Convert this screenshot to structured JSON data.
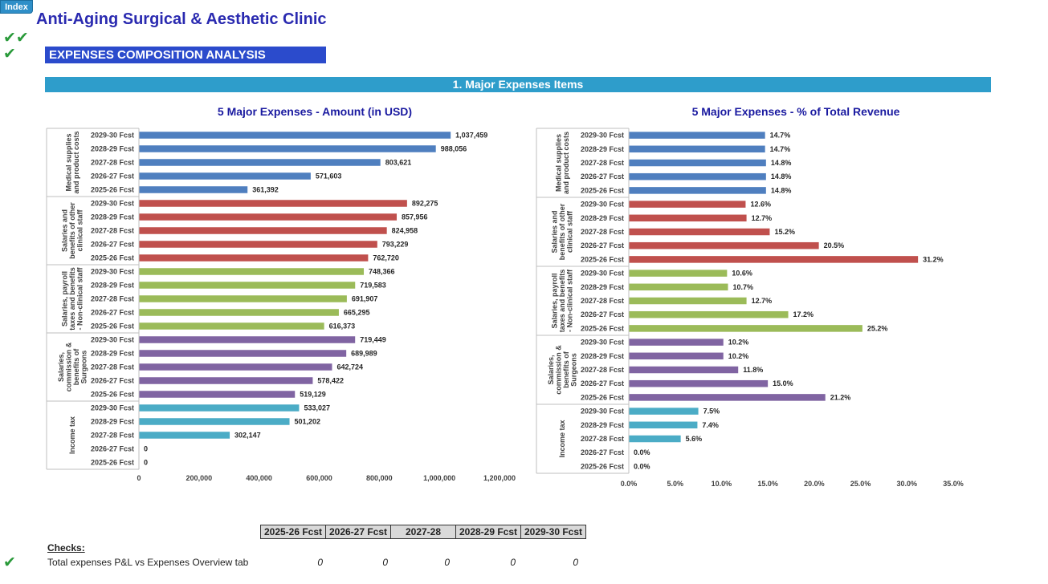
{
  "index_button": "Index",
  "title": "Anti-Aging Surgical & Aesthetic Clinic",
  "check_marks": {
    "top1": "✔✔",
    "top2": "✔",
    "row": "✔"
  },
  "section_title": "EXPENSES COMPOSITION ANALYSIS",
  "subsection_title": "1. Major Expenses Items",
  "chart_data": [
    {
      "type": "bar",
      "orientation": "horizontal",
      "title": "5 Major Expenses - Amount (in USD)",
      "xlim": [
        0,
        1200000
      ],
      "xticks": [
        "0",
        "200,000",
        "400,000",
        "600,000",
        "800,000",
        "1,000,000",
        "1,200,000"
      ],
      "groups": [
        {
          "name": "Medical supplies and product costs",
          "label_lines": [
            "Medical supplies",
            "and product costs"
          ],
          "color": "#4f7fbf",
          "categories": [
            "2029-30 Fcst",
            "2028-29 Fcst",
            "2027-28 Fcst",
            "2026-27 Fcst",
            "2025-26 Fcst"
          ],
          "values": [
            1037459,
            988056,
            803621,
            571603,
            361392
          ],
          "labels": [
            "1,037,459",
            "988,056",
            "803,621",
            "571,603",
            "361,392"
          ]
        },
        {
          "name": "Salaries and benefits of other clinical staff",
          "label_lines": [
            "Salaries and",
            "benefits of other",
            "clinical staff"
          ],
          "color": "#c0504d",
          "categories": [
            "2029-30 Fcst",
            "2028-29 Fcst",
            "2027-28 Fcst",
            "2026-27 Fcst",
            "2025-26 Fcst"
          ],
          "values": [
            892275,
            857956,
            824958,
            793229,
            762720
          ],
          "labels": [
            "892,275",
            "857,956",
            "824,958",
            "793,229",
            "762,720"
          ]
        },
        {
          "name": "Salaries, payroll taxes and benefits - Non-clinical staff",
          "label_lines": [
            "Salaries, payroll",
            "taxes and benefits",
            "- Non-clinical staff"
          ],
          "color": "#9bbb59",
          "categories": [
            "2029-30 Fcst",
            "2028-29 Fcst",
            "2027-28 Fcst",
            "2026-27 Fcst",
            "2025-26 Fcst"
          ],
          "values": [
            748366,
            719583,
            691907,
            665295,
            616373
          ],
          "labels": [
            "748,366",
            "719,583",
            "691,907",
            "665,295",
            "616,373"
          ]
        },
        {
          "name": "Salaries, commission & benefits of Surgeons",
          "label_lines": [
            "Salaries,",
            "commission &",
            "benefits of",
            "Surgeons"
          ],
          "color": "#8064a2",
          "categories": [
            "2029-30 Fcst",
            "2028-29 Fcst",
            "2027-28 Fcst",
            "2026-27 Fcst",
            "2025-26 Fcst"
          ],
          "values": [
            719449,
            689989,
            642724,
            578422,
            519129
          ],
          "labels": [
            "719,449",
            "689,989",
            "642,724",
            "578,422",
            "519,129"
          ]
        },
        {
          "name": "Income tax",
          "label_lines": [
            "Income tax"
          ],
          "color": "#4bacc6",
          "categories": [
            "2029-30 Fcst",
            "2028-29 Fcst",
            "2027-28 Fcst",
            "2026-27 Fcst",
            "2025-26 Fcst"
          ],
          "values": [
            533027,
            501202,
            302147,
            0,
            0
          ],
          "labels": [
            "533,027",
            "501,202",
            "302,147",
            "0",
            "0"
          ]
        }
      ]
    },
    {
      "type": "bar",
      "orientation": "horizontal",
      "title": "5 Major Expenses - % of Total Revenue",
      "xlim": [
        0,
        35
      ],
      "xticks": [
        "0.0%",
        "5.0%",
        "10.0%",
        "15.0%",
        "20.0%",
        "25.0%",
        "30.0%",
        "35.0%"
      ],
      "groups": [
        {
          "name": "Medical supplies and product costs",
          "label_lines": [
            "Medical supplies",
            "and product costs"
          ],
          "color": "#4f7fbf",
          "categories": [
            "2029-30 Fcst",
            "2028-29 Fcst",
            "2027-28 Fcst",
            "2026-27 Fcst",
            "2025-26 Fcst"
          ],
          "values": [
            14.7,
            14.7,
            14.8,
            14.8,
            14.8
          ],
          "labels": [
            "14.7%",
            "14.7%",
            "14.8%",
            "14.8%",
            "14.8%"
          ]
        },
        {
          "name": "Salaries and benefits of other clinical staff",
          "label_lines": [
            "Salaries and",
            "benefits of other",
            "clinical staff"
          ],
          "color": "#c0504d",
          "categories": [
            "2029-30 Fcst",
            "2028-29 Fcst",
            "2027-28 Fcst",
            "2026-27 Fcst",
            "2025-26 Fcst"
          ],
          "values": [
            12.6,
            12.7,
            15.2,
            20.5,
            31.2
          ],
          "labels": [
            "12.6%",
            "12.7%",
            "15.2%",
            "20.5%",
            "31.2%"
          ]
        },
        {
          "name": "Salaries, payroll taxes and benefits - Non-clinical staff",
          "label_lines": [
            "Salaries, payroll",
            "taxes and benefits",
            "- Non-clinical staff"
          ],
          "color": "#9bbb59",
          "categories": [
            "2029-30 Fcst",
            "2028-29 Fcst",
            "2027-28 Fcst",
            "2026-27 Fcst",
            "2025-26 Fcst"
          ],
          "values": [
            10.6,
            10.7,
            12.7,
            17.2,
            25.2
          ],
          "labels": [
            "10.6%",
            "10.7%",
            "12.7%",
            "17.2%",
            "25.2%"
          ]
        },
        {
          "name": "Salaries, commission & benefits of Surgeons",
          "label_lines": [
            "Salaries,",
            "commission &",
            "benefits of",
            "Surgeons"
          ],
          "color": "#8064a2",
          "categories": [
            "2029-30 Fcst",
            "2028-29 Fcst",
            "2027-28 Fcst",
            "2026-27 Fcst",
            "2025-26 Fcst"
          ],
          "values": [
            10.2,
            10.2,
            11.8,
            15.0,
            21.2
          ],
          "labels": [
            "10.2%",
            "10.2%",
            "11.8%",
            "15.0%",
            "21.2%"
          ]
        },
        {
          "name": "Income tax",
          "label_lines": [
            "Income tax"
          ],
          "color": "#4bacc6",
          "categories": [
            "2029-30 Fcst",
            "2028-29 Fcst",
            "2027-28 Fcst",
            "2026-27 Fcst",
            "2025-26 Fcst"
          ],
          "values": [
            7.5,
            7.4,
            5.6,
            0.0,
            0.0
          ],
          "labels": [
            "7.5%",
            "7.4%",
            "5.6%",
            "0.0%",
            "0.0%"
          ]
        }
      ]
    }
  ],
  "checks": {
    "heading": "Checks:",
    "columns": [
      "2025-26 Fcst",
      "2026-27 Fcst",
      "2027-28",
      "2028-29 Fcst",
      "2029-30 Fcst"
    ],
    "row_label": "Total expenses P&L vs Expenses Overview tab",
    "row_values": [
      "0",
      "0",
      "0",
      "0",
      "0"
    ]
  }
}
